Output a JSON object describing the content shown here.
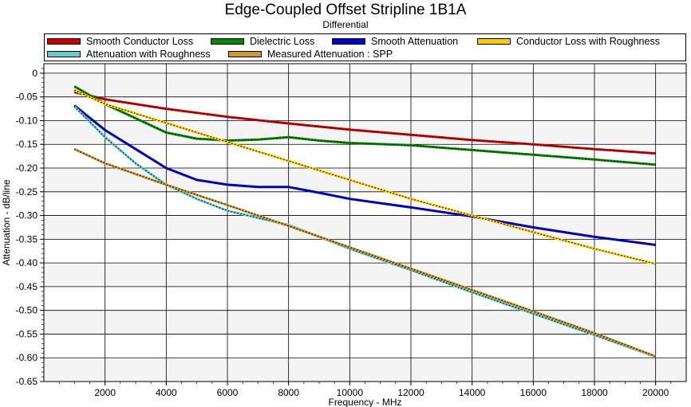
{
  "chart_data": {
    "type": "line",
    "title": "Edge-Coupled Offset Stripline 1B1A",
    "subtitle": "Differential",
    "xlabel": "Frequency - MHz",
    "ylabel": "Attenuation - dB/line",
    "xlim": [
      0,
      21000
    ],
    "ylim": [
      -0.65,
      0.02
    ],
    "xticks": [
      2000,
      4000,
      6000,
      8000,
      10000,
      12000,
      14000,
      16000,
      18000,
      20000
    ],
    "yticks": [
      0,
      -0.05,
      -0.1,
      -0.15,
      -0.2,
      -0.25,
      -0.3,
      -0.35,
      -0.4,
      -0.45,
      -0.5,
      -0.55,
      -0.6,
      -0.65
    ],
    "ytick_labels": [
      "0",
      "-0.05",
      "-0.10",
      "-0.15",
      "-0.20",
      "-0.25",
      "-0.30",
      "-0.35",
      "-0.40",
      "-0.45",
      "-0.50",
      "-0.55",
      "-0.60",
      "-0.65"
    ],
    "grid": true,
    "legend_position": "top",
    "series": [
      {
        "name": "Smooth Conductor Loss",
        "color": "#cc0000",
        "x": [
          1000,
          2000,
          4000,
          6000,
          8000,
          10000,
          12000,
          14000,
          16000,
          18000,
          20000
        ],
        "values": [
          -0.04,
          -0.055,
          -0.075,
          -0.092,
          -0.106,
          -0.119,
          -0.13,
          -0.141,
          -0.15,
          -0.16,
          -0.169
        ]
      },
      {
        "name": "Dielectric Loss",
        "color": "#008800",
        "x": [
          1000,
          2000,
          3000,
          4000,
          5000,
          6000,
          7000,
          8000,
          9000,
          10000,
          12000,
          14000,
          16000,
          18000,
          20000
        ],
        "values": [
          -0.028,
          -0.065,
          -0.095,
          -0.125,
          -0.138,
          -0.142,
          -0.14,
          -0.135,
          -0.142,
          -0.147,
          -0.152,
          -0.162,
          -0.172,
          -0.182,
          -0.193
        ]
      },
      {
        "name": "Smooth Attenuation",
        "color": "#0000cc",
        "x": [
          1000,
          2000,
          3000,
          4000,
          5000,
          6000,
          7000,
          8000,
          9000,
          10000,
          12000,
          14000,
          16000,
          18000,
          20000
        ],
        "values": [
          -0.068,
          -0.12,
          -0.16,
          -0.2,
          -0.225,
          -0.235,
          -0.24,
          -0.24,
          -0.252,
          -0.265,
          -0.283,
          -0.302,
          -0.325,
          -0.345,
          -0.362
        ]
      },
      {
        "name": "Conductor Loss with Roughness",
        "color": "#ffcc00",
        "x": [
          1000,
          2000,
          4000,
          6000,
          8000,
          10000,
          12000,
          14000,
          16000,
          18000,
          20000
        ],
        "values": [
          -0.036,
          -0.065,
          -0.105,
          -0.145,
          -0.185,
          -0.225,
          -0.265,
          -0.3,
          -0.335,
          -0.37,
          -0.402
        ]
      },
      {
        "name": "Attenuation with Roughness",
        "color": "#66cccc",
        "x": [
          1000,
          2000,
          3000,
          4000,
          5000,
          6000,
          7000,
          8000,
          10000,
          12000,
          14000,
          16000,
          18000,
          20000
        ],
        "values": [
          -0.07,
          -0.135,
          -0.19,
          -0.235,
          -0.265,
          -0.29,
          -0.305,
          -0.32,
          -0.37,
          -0.415,
          -0.462,
          -0.507,
          -0.552,
          -0.598
        ]
      },
      {
        "name": "Measured Attenuation : SPP",
        "color": "#cc9933",
        "x": [
          1000,
          2000,
          4000,
          6000,
          8000,
          10000,
          12000,
          14000,
          16000,
          18000,
          20000
        ],
        "values": [
          -0.16,
          -0.19,
          -0.235,
          -0.278,
          -0.322,
          -0.367,
          -0.412,
          -0.457,
          -0.502,
          -0.548,
          -0.597
        ]
      }
    ]
  }
}
